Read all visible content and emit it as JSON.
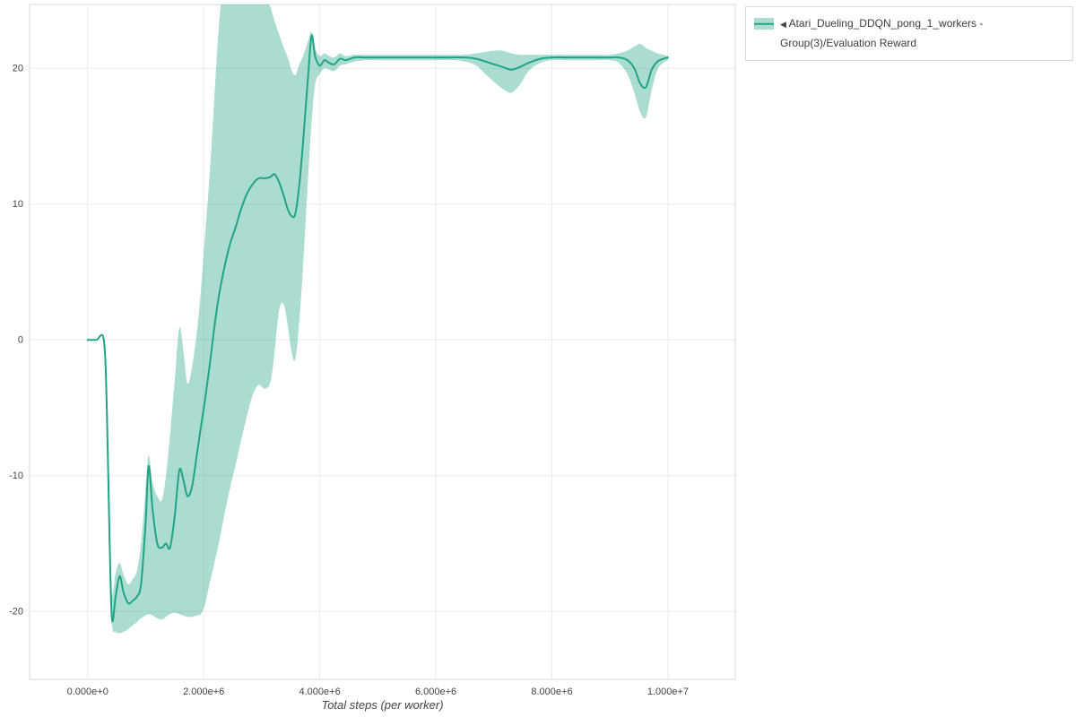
{
  "page": {
    "background": "#ffffff"
  },
  "legend": {
    "toggle_icon": "◀",
    "label": "Atari_Dueling_DDQN_pong_1_workers - Group(3)/Evaluation Reward"
  },
  "chart_data": {
    "type": "line",
    "title": "",
    "xlabel": "Total steps (per worker)",
    "ylabel": "",
    "grid": true,
    "legend_position": "top-right",
    "background": "#ffffff",
    "grid_color": "#ebebeb",
    "border_color": "#d9d9d9",
    "tick_color": "#444444",
    "xlim": [
      -1000000,
      11160000
    ],
    "ylim": [
      -25,
      24.7
    ],
    "x_ticks": [
      {
        "value": 0,
        "label": "0.000e+0"
      },
      {
        "value": 2000000,
        "label": "2.000e+6"
      },
      {
        "value": 4000000,
        "label": "4.000e+6"
      },
      {
        "value": 6000000,
        "label": "6.000e+6"
      },
      {
        "value": 8000000,
        "label": "8.000e+6"
      },
      {
        "value": 10000000,
        "label": "1.000e+7"
      }
    ],
    "y_ticks": [
      {
        "value": -20,
        "label": "-20"
      },
      {
        "value": -10,
        "label": "-10"
      },
      {
        "value": 0,
        "label": "0"
      },
      {
        "value": 10,
        "label": "10"
      },
      {
        "value": 20,
        "label": "20"
      }
    ],
    "series": [
      {
        "name": "Atari_Dueling_DDQN_pong_1_workers - Group(3)/Evaluation Reward",
        "line_color": "#20a486",
        "band_opacity": 0.38,
        "x_millions": [
          0.0,
          0.15,
          0.28,
          0.33,
          0.38,
          0.42,
          0.48,
          0.55,
          0.62,
          0.7,
          0.78,
          0.85,
          0.92,
          1.0,
          1.05,
          1.12,
          1.2,
          1.28,
          1.35,
          1.42,
          1.5,
          1.58,
          1.65,
          1.72,
          1.8,
          1.88,
          1.95,
          2.02,
          2.1,
          2.18,
          2.26,
          2.35,
          2.45,
          2.55,
          2.65,
          2.75,
          2.85,
          2.95,
          3.05,
          3.15,
          3.22,
          3.3,
          3.38,
          3.45,
          3.52,
          3.58,
          3.65,
          3.72,
          3.8,
          3.86,
          3.92,
          4.0,
          4.08,
          4.16,
          4.25,
          4.35,
          4.45,
          4.6,
          4.8,
          5.0,
          5.25,
          5.5,
          5.75,
          6.0,
          6.25,
          6.5,
          6.7,
          6.85,
          7.0,
          7.15,
          7.3,
          7.45,
          7.6,
          7.8,
          8.0,
          8.25,
          8.5,
          8.75,
          9.0,
          9.15,
          9.3,
          9.42,
          9.52,
          9.62,
          9.72,
          9.82,
          9.92,
          10.0
        ],
        "mean": [
          0,
          0,
          0,
          -5,
          -15,
          -20.6,
          -19,
          -17.4,
          -18.6,
          -19.4,
          -19.2,
          -18.9,
          -18,
          -13.5,
          -9.3,
          -12.5,
          -15,
          -15.3,
          -15,
          -15.3,
          -13,
          -9.6,
          -10.3,
          -11.5,
          -10.8,
          -8.5,
          -6.5,
          -4.5,
          -2,
          0.8,
          3.2,
          5.2,
          7,
          8.3,
          9.7,
          10.8,
          11.5,
          11.9,
          11.9,
          12,
          12.2,
          11.6,
          10.6,
          9.6,
          9.1,
          9.3,
          11.5,
          15,
          19.5,
          22.4,
          20.9,
          20.2,
          20.6,
          20.4,
          20.3,
          20.7,
          20.6,
          20.8,
          20.8,
          20.8,
          20.8,
          20.8,
          20.8,
          20.8,
          20.8,
          20.8,
          20.7,
          20.5,
          20.3,
          20.1,
          19.9,
          20.1,
          20.4,
          20.7,
          20.8,
          20.8,
          20.8,
          20.8,
          20.8,
          20.8,
          20.6,
          20,
          18.9,
          18.6,
          19.9,
          20.5,
          20.7,
          20.8
        ],
        "lower": [
          0,
          0,
          0,
          -6,
          -16.5,
          -21,
          -21.5,
          -21.6,
          -21.5,
          -21.3,
          -21,
          -20.8,
          -20.5,
          -20.3,
          -20.2,
          -20.3,
          -20.5,
          -20.6,
          -20.4,
          -20.2,
          -20.1,
          -20.2,
          -20.3,
          -20.4,
          -20.4,
          -20.3,
          -20.2,
          -19.5,
          -18,
          -16.5,
          -15,
          -13,
          -11,
          -9.2,
          -7.3,
          -5.5,
          -4,
          -3.3,
          -3.6,
          -3.1,
          -1,
          2.2,
          2.6,
          1,
          -1,
          -1.4,
          1.5,
          6,
          12,
          16,
          18.8,
          19.6,
          20,
          19.9,
          19.8,
          20.2,
          20.3,
          20.5,
          20.6,
          20.6,
          20.6,
          20.6,
          20.6,
          20.6,
          20.6,
          20.5,
          20.2,
          19.6,
          19,
          18.5,
          18.2,
          18.8,
          19.8,
          20.4,
          20.6,
          20.6,
          20.6,
          20.6,
          20.6,
          20.4,
          19.6,
          18.2,
          16.8,
          16.4,
          18.4,
          19.9,
          20.4,
          20.6
        ],
        "upper": [
          0,
          0,
          0,
          -4,
          -13,
          -18.6,
          -17.2,
          -16.4,
          -17.3,
          -18,
          -17.6,
          -17,
          -15,
          -11,
          -8.5,
          -10.5,
          -11.5,
          -11.8,
          -10,
          -7,
          -3,
          0.9,
          -0.8,
          -3.2,
          -2,
          0.5,
          3.5,
          7.5,
          12,
          17.5,
          23,
          26.5,
          27,
          27,
          27,
          26.5,
          26,
          26,
          25.5,
          24.5,
          23.5,
          22.5,
          21.5,
          20.8,
          19.8,
          19.5,
          20.3,
          21,
          22,
          22.7,
          21.5,
          20.9,
          21.1,
          20.9,
          20.8,
          21.1,
          20.9,
          21,
          21,
          21,
          21,
          21,
          21,
          21,
          21,
          21,
          21.1,
          21.2,
          21.3,
          21.3,
          21.1,
          21,
          21,
          21,
          21,
          21,
          21,
          21,
          21,
          21.1,
          21.3,
          21.6,
          21.8,
          21.5,
          21.3,
          21.1,
          21,
          20.9
        ]
      }
    ]
  }
}
